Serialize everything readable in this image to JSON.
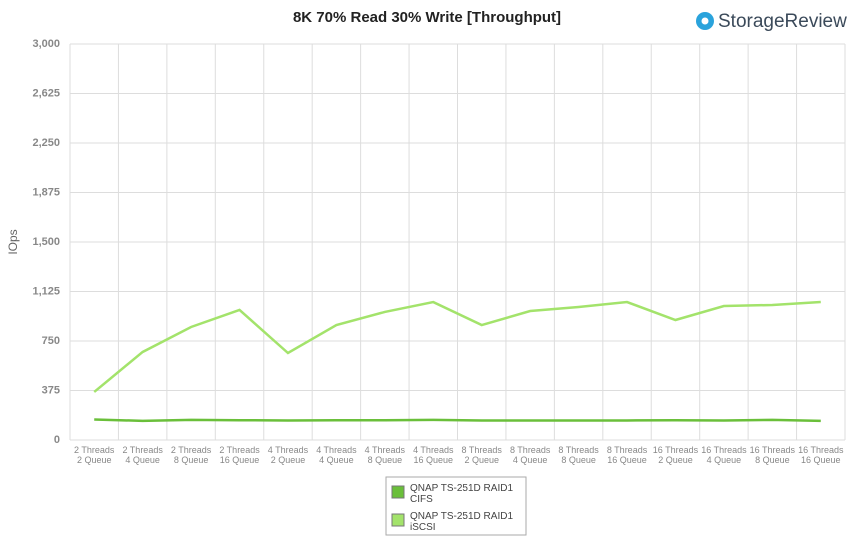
{
  "chart_data": {
    "type": "line",
    "title": "8K 70% Read 30% Write [Throughput]",
    "logo": "StorageReview",
    "y_label": "IOps",
    "categories": [
      "2 Threads\n2 Queue",
      "2 Threads\n4 Queue",
      "2 Threads\n8 Queue",
      "2 Threads\n16 Queue",
      "4 Threads\n2 Queue",
      "4 Threads\n4 Queue",
      "4 Threads\n8 Queue",
      "4 Threads\n16 Queue",
      "8 Threads\n2 Queue",
      "8 Threads\n4 Queue",
      "8 Threads\n8 Queue",
      "8 Threads\n16 Queue",
      "16 Threads\n2 Queue",
      "16 Threads\n4 Queue",
      "16 Threads\n8 Queue",
      "16 Threads\n16 Queue"
    ],
    "series": [
      {
        "name": "QNAP TS-251D RAID1\nCIFS",
        "color": "#6abf3a",
        "values": [
          155,
          145,
          152,
          150,
          148,
          150,
          150,
          152,
          148,
          148,
          148,
          148,
          150,
          148,
          152,
          145
        ]
      },
      {
        "name": "QNAP TS-251D RAID1\niSCSI",
        "color": "#a3e36b",
        "values": [
          364,
          667,
          856,
          985,
          659,
          871,
          970,
          1045,
          871,
          977,
          1008,
          1045,
          909,
          1015,
          1023,
          1045
        ]
      }
    ],
    "ylim": [
      0,
      3000
    ],
    "yticks": [
      0,
      375,
      750,
      {
        "value": 1125,
        "label": "1,125"
      },
      {
        "value": 1500,
        "label": "1,500"
      },
      {
        "value": 1875,
        "label": "1,875"
      },
      {
        "value": 2250,
        "label": "2,250"
      },
      {
        "value": 2625,
        "label": "2,625"
      },
      {
        "value": 3000,
        "label": "3,000"
      }
    ],
    "grid": true
  }
}
